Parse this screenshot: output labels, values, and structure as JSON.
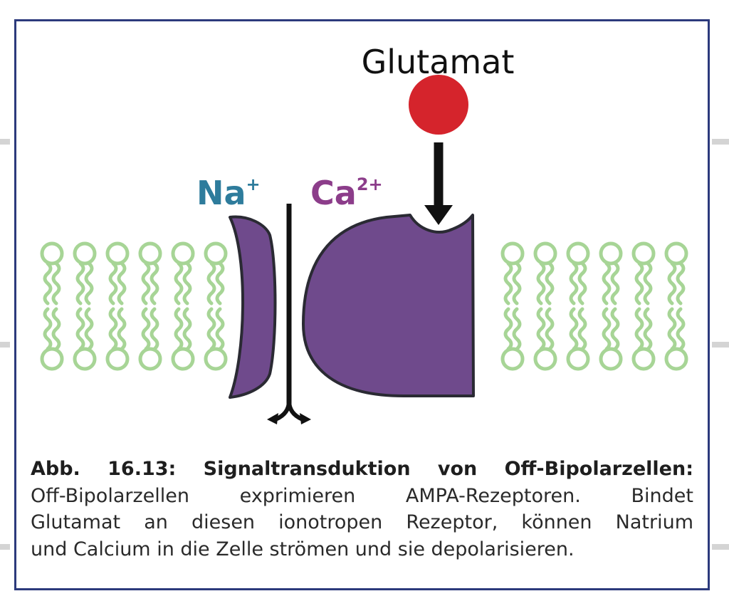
{
  "labels": {
    "ligand": "Glutamat",
    "ion_1": "Na",
    "ion_1_charge": "+",
    "ion_2": "Ca",
    "ion_2_charge": "2+"
  },
  "caption": {
    "title": "Abb. 16.13: Signaltransduktion von Off-Bipolarzellen:",
    "line_1": "Off-Bipolarzellen exprimieren AMPA-Rezeptoren. Bindet",
    "line_2": "Glutamat an diesen ionotropen Rezeptor, können Natrium",
    "line_3": "und Calcium in die Zelle strömen und sie depolarisieren."
  },
  "colors": {
    "frame": "#2c3a7c",
    "lipid": "#a7d596",
    "receptor": "#6f4a8c",
    "ligand": "#d5242c",
    "sodium_label": "#2e7c9c",
    "calcium_label": "#8c3d8a",
    "arrow": "#111111"
  }
}
